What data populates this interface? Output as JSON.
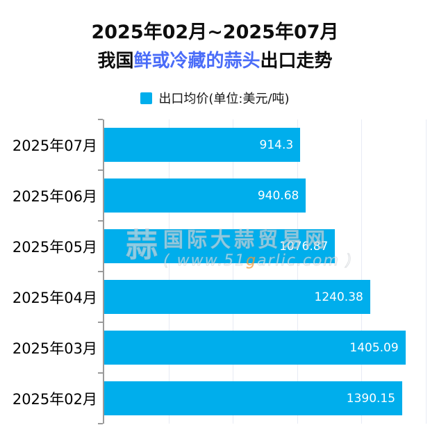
{
  "title": {
    "line1": "2025年02月~2025年07月",
    "line2_prefix": "我国",
    "line2_highlight": "鲜或冷藏的蒜头",
    "line2_suffix": "出口走势"
  },
  "legend": {
    "label": "出口均价(单位:美元/吨)",
    "color": "#00aeec"
  },
  "chart_data": {
    "type": "bar",
    "orientation": "horizontal",
    "title": "2025年02月~2025年07月 我国鲜或冷藏的蒜头出口走势",
    "series_name": "出口均价",
    "unit": "美元/吨",
    "categories": [
      "2025年07月",
      "2025年06月",
      "2025年05月",
      "2025年04月",
      "2025年03月",
      "2025年02月"
    ],
    "values": [
      914.3,
      940.68,
      1076.87,
      1240.38,
      1405.09,
      1390.15
    ],
    "value_labels": [
      "914.3",
      "940.68",
      "1076.87",
      "1240.38",
      "1405.09",
      "1390.15"
    ],
    "xlim": [
      0,
      1500
    ],
    "grid_interval": 300,
    "grid": true,
    "legend_position": "top",
    "bar_color": "#00aeec",
    "value_label_color": "#ffffff"
  },
  "watermark": {
    "logo_glyph": "蒜",
    "line1": "国际大蒜贸易网",
    "line2_pre": "( www.51",
    "line2_g": "g",
    "line2_post": "arlic.com )"
  },
  "colors": {
    "accent_blue": "#4a6cf8",
    "bar": "#00aeec",
    "axis": "#9a9a9a",
    "gridline": "#e7ebf4",
    "title_text": "#0e0e0e"
  }
}
